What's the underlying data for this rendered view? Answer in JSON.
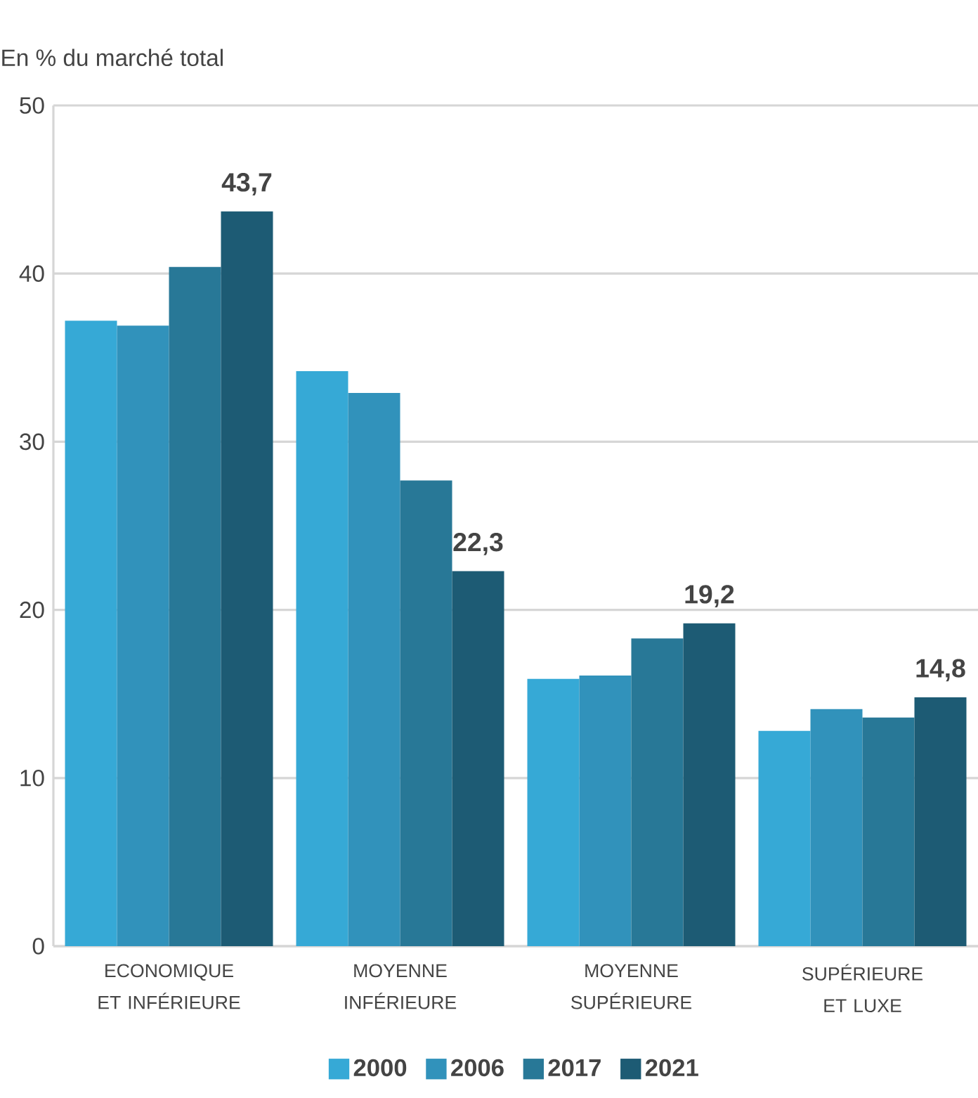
{
  "chart_data": {
    "type": "bar",
    "ylabel": "En % du marché total",
    "categories": [
      "ECONOMIQUE ET INFÉRIEURE",
      "MOYENNE INFÉRIEURE",
      "MOYENNE SUPÉRIEURE",
      "SUPÉRIEURE ET LUXE"
    ],
    "series": [
      {
        "name": "2000",
        "color": "#36a9d6",
        "values": [
          37.2,
          34.2,
          15.9,
          12.8
        ]
      },
      {
        "name": "2006",
        "color": "#3192bb",
        "values": [
          36.9,
          32.9,
          16.1,
          14.1
        ]
      },
      {
        "name": "2017",
        "color": "#287897",
        "values": [
          40.4,
          27.7,
          18.3,
          13.6
        ]
      },
      {
        "name": "2021",
        "color": "#1d5b74",
        "values": [
          43.7,
          22.3,
          19.2,
          14.8
        ],
        "value_labels": [
          "43,7",
          "22,3",
          "19,2",
          "14,8"
        ]
      }
    ],
    "ylim": [
      0,
      50
    ],
    "yticks": [
      0,
      10,
      20,
      30,
      40,
      50
    ],
    "grid": "y",
    "legend": "bottom"
  }
}
